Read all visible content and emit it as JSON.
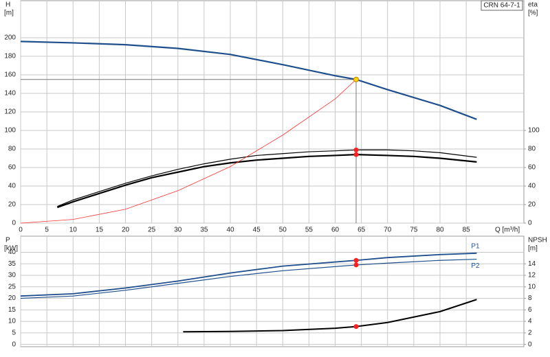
{
  "chart_data": [
    {
      "type": "line",
      "title": "CRN 64-7-1",
      "ylabel": "H",
      "yunit": "[m]",
      "y2label": "eta",
      "y2unit": "[%]",
      "xlabel": "Q [m³/h]",
      "xlim": [
        0,
        96
      ],
      "xticks": [
        0,
        5,
        10,
        15,
        20,
        25,
        30,
        35,
        40,
        45,
        50,
        55,
        60,
        65,
        70,
        75,
        80,
        85
      ],
      "ylim": [
        0,
        240
      ],
      "yticks": [
        0,
        20,
        40,
        60,
        80,
        100,
        120,
        140,
        160,
        180,
        200
      ],
      "y2lim": [
        0,
        240
      ],
      "y2ticks": [
        0,
        20,
        40,
        60,
        80,
        100
      ],
      "grid": true,
      "series": [
        {
          "name": "H",
          "color": "#1f4e8c",
          "width": 2.2,
          "x": [
            0,
            10,
            20,
            30,
            40,
            50,
            60,
            64,
            70,
            80,
            87
          ],
          "values": [
            196,
            194.5,
            192.5,
            188.5,
            182,
            171,
            159,
            155,
            144,
            127,
            112
          ]
        },
        {
          "name": "eta",
          "color": "#000000",
          "width": 1.2,
          "axis": "y2",
          "x": [
            7,
            10,
            15,
            20,
            25,
            30,
            35,
            40,
            45,
            50,
            55,
            60,
            64,
            70,
            75,
            80,
            87
          ],
          "values": [
            18,
            25,
            34,
            43,
            51,
            58,
            64,
            69,
            73,
            75,
            77,
            78,
            79,
            79,
            78,
            76,
            71
          ]
        },
        {
          "name": "eta",
          "color": "#000000",
          "width": 2.2,
          "axis": "y2",
          "x": [
            7,
            10,
            15,
            20,
            25,
            30,
            35,
            40,
            45,
            50,
            55,
            60,
            64,
            70,
            75,
            80,
            87
          ],
          "values": [
            17,
            23,
            32,
            41,
            49,
            55,
            61,
            65,
            68,
            70,
            72,
            73,
            74,
            73,
            72,
            70,
            66
          ]
        },
        {
          "name": "system",
          "color": "#ff3030",
          "width": 0.8,
          "x": [
            0,
            10,
            20,
            30,
            40,
            50,
            60,
            64
          ],
          "values": [
            0,
            4,
            15,
            35,
            61,
            95,
            134,
            155
          ]
        }
      ],
      "points": [
        {
          "x": 64,
          "y": 155,
          "color": "#ffd200",
          "guides": true
        },
        {
          "x": 64,
          "y": 79,
          "color": "#ff2020"
        },
        {
          "x": 64,
          "y": 74,
          "color": "#ff2020"
        }
      ]
    },
    {
      "type": "line",
      "ylabel": "P",
      "yunit": "[kW]",
      "y2label": "NPSH",
      "y2unit": "[m]",
      "xlim": [
        0,
        96
      ],
      "xticks": [
        0,
        5,
        10,
        15,
        20,
        25,
        30,
        35,
        40,
        45,
        50,
        55,
        60,
        65,
        70,
        75,
        80,
        85
      ],
      "show_xtick_labels": false,
      "ylim": [
        -1,
        47
      ],
      "yticks": [
        0,
        5,
        10,
        15,
        20,
        25,
        30,
        35,
        40
      ],
      "y2lim": [
        -0.4,
        18.8
      ],
      "y2ticks": [
        0,
        2,
        4,
        6,
        8,
        10,
        12,
        14
      ],
      "grid": true,
      "series": [
        {
          "name": "P1",
          "color": "#1f4e8c",
          "width": 1.8,
          "x": [
            0,
            10,
            20,
            30,
            40,
            50,
            64,
            70,
            80,
            87
          ],
          "values": [
            21,
            22,
            24.5,
            27.5,
            31,
            34,
            36.5,
            37.7,
            39,
            39.6
          ]
        },
        {
          "name": "P2",
          "color": "#1f4e8c",
          "width": 1.2,
          "x": [
            0,
            10,
            20,
            30,
            40,
            50,
            64,
            70,
            80,
            87
          ],
          "values": [
            20,
            21,
            23.5,
            26.5,
            29.5,
            32,
            34.5,
            35.3,
            36.5,
            37
          ]
        },
        {
          "name": "NPSH",
          "color": "#000000",
          "width": 2,
          "axis": "y2",
          "x": [
            31,
            40,
            50,
            60,
            64,
            70,
            80,
            87
          ],
          "values": [
            2.2,
            2.25,
            2.4,
            2.8,
            3.1,
            3.8,
            5.7,
            7.8
          ]
        }
      ],
      "points": [
        {
          "x": 64,
          "y": 36.5,
          "color": "#ff2020"
        },
        {
          "x": 64,
          "y": 34.5,
          "color": "#ff2020"
        },
        {
          "x": 64,
          "y": 3.1,
          "color": "#ff2020",
          "axis": "y2"
        }
      ]
    }
  ]
}
